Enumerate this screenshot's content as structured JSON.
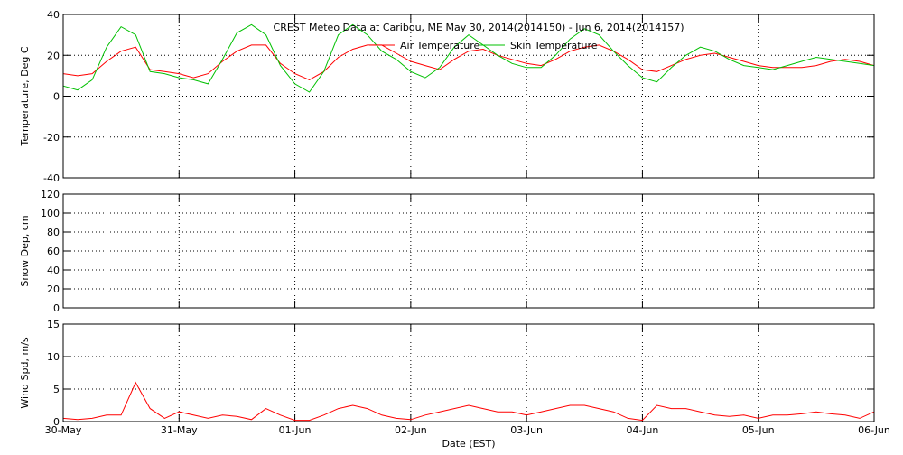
{
  "chart_data": [
    {
      "type": "line",
      "title": "CREST Meteo Data at Caribou, ME   May 30, 2014(2014150) - Jun  6, 2014(2014157)",
      "ylabel": "Temperature, Deg C",
      "legend": "upper center",
      "grid": true,
      "x": [
        0,
        0.125,
        0.25,
        0.375,
        0.5,
        0.625,
        0.75,
        0.875,
        1,
        1.125,
        1.25,
        1.375,
        1.5,
        1.625,
        1.75,
        1.875,
        2,
        2.125,
        2.25,
        2.375,
        2.5,
        2.625,
        2.75,
        2.875,
        3,
        3.125,
        3.25,
        3.375,
        3.5,
        3.625,
        3.75,
        3.875,
        4,
        4.125,
        4.25,
        4.375,
        4.5,
        4.625,
        4.75,
        4.875,
        5,
        5.125,
        5.25,
        5.375,
        5.5,
        5.625,
        5.75,
        5.875,
        6,
        6.125,
        6.25,
        6.375,
        6.5,
        6.625,
        6.75,
        6.875,
        7
      ],
      "xlim": [
        0,
        7
      ],
      "xticks": [
        0,
        1,
        2,
        3,
        4,
        5,
        6,
        7
      ],
      "ylim": [
        -40,
        40
      ],
      "yticks": [
        -40,
        -20,
        0,
        20,
        40
      ],
      "series": [
        {
          "name": "Air Temperature",
          "color": "#ff0000",
          "values": [
            11,
            10,
            11,
            17,
            22,
            24,
            13,
            12,
            11,
            9,
            11,
            17,
            22,
            25,
            25,
            16,
            11,
            8,
            12,
            19,
            23,
            25,
            25,
            21,
            17,
            15,
            13,
            18,
            22,
            23,
            20,
            18,
            16,
            15,
            18,
            22,
            24,
            25,
            22,
            18,
            13,
            12,
            15,
            18,
            20,
            21,
            19,
            17,
            15,
            14,
            14,
            14,
            15,
            17,
            18,
            17,
            15
          ]
        },
        {
          "name": "Skin Temperature",
          "color": "#00c000",
          "values": [
            5,
            3,
            8,
            24,
            34,
            30,
            12,
            11,
            9,
            8,
            6,
            18,
            31,
            35,
            30,
            15,
            6,
            2,
            12,
            30,
            35,
            30,
            22,
            18,
            12,
            9,
            14,
            24,
            30,
            25,
            20,
            16,
            14,
            14,
            20,
            28,
            33,
            30,
            22,
            15,
            9,
            7,
            14,
            20,
            24,
            22,
            18,
            15,
            14,
            13,
            15,
            17,
            19,
            18,
            17,
            16,
            15
          ]
        }
      ]
    },
    {
      "type": "line",
      "ylabel": "Snow Dep, cm",
      "grid": true,
      "x": [
        0,
        0.125,
        0.25,
        0.375,
        0.5,
        0.625,
        0.75,
        0.875,
        1,
        1.125,
        1.25,
        1.375,
        1.5,
        1.625,
        1.75,
        1.875,
        2,
        2.125,
        2.25,
        2.375,
        2.5,
        2.625,
        2.75,
        2.875,
        3,
        3.125,
        3.25,
        3.375,
        3.5,
        3.625,
        3.75,
        3.875,
        4,
        4.125,
        4.25,
        4.375,
        4.5,
        4.625,
        4.75,
        4.875,
        5,
        5.125,
        5.25,
        5.375,
        5.5,
        5.625,
        5.75,
        5.875,
        6,
        6.125,
        6.25,
        6.375,
        6.5,
        6.625,
        6.75,
        6.875,
        7
      ],
      "xlim": [
        0,
        7
      ],
      "xticks": [
        0,
        1,
        2,
        3,
        4,
        5,
        6,
        7
      ],
      "ylim": [
        0,
        120
      ],
      "yticks": [
        0,
        20,
        40,
        60,
        80,
        100,
        120
      ],
      "series": [
        {
          "color": "#000080",
          "values": [
            0,
            0,
            0,
            0,
            0,
            0,
            0,
            0,
            0,
            0,
            0,
            0,
            0,
            0,
            0,
            0,
            0,
            0,
            0,
            0,
            0,
            0,
            0,
            0,
            0,
            0,
            0,
            0,
            0,
            0,
            0,
            0,
            0,
            0,
            0,
            0,
            0,
            0,
            0,
            0,
            0,
            0,
            0,
            0,
            0,
            0,
            0,
            0,
            0,
            0,
            0,
            0,
            0,
            0,
            0,
            0,
            0
          ]
        }
      ]
    },
    {
      "type": "line",
      "ylabel": "Wind Spd, m/s",
      "xlabel": "Date (EST)",
      "grid": true,
      "x": [
        0,
        0.125,
        0.25,
        0.375,
        0.5,
        0.625,
        0.75,
        0.875,
        1,
        1.125,
        1.25,
        1.375,
        1.5,
        1.625,
        1.75,
        1.875,
        2,
        2.125,
        2.25,
        2.375,
        2.5,
        2.625,
        2.75,
        2.875,
        3,
        3.125,
        3.25,
        3.375,
        3.5,
        3.625,
        3.75,
        3.875,
        4,
        4.125,
        4.25,
        4.375,
        4.5,
        4.625,
        4.75,
        4.875,
        5,
        5.125,
        5.25,
        5.375,
        5.5,
        5.625,
        5.75,
        5.875,
        6,
        6.125,
        6.25,
        6.375,
        6.5,
        6.625,
        6.75,
        6.875,
        7
      ],
      "xlim": [
        0,
        7
      ],
      "xticks": [
        {
          "value": 0,
          "label": "30-May"
        },
        {
          "value": 1,
          "label": "31-May"
        },
        {
          "value": 2,
          "label": "01-Jun"
        },
        {
          "value": 3,
          "label": "02-Jun"
        },
        {
          "value": 4,
          "label": "03-Jun"
        },
        {
          "value": 5,
          "label": "04-Jun"
        },
        {
          "value": 6,
          "label": "05-Jun"
        },
        {
          "value": 7,
          "label": "06-Jun"
        }
      ],
      "ylim": [
        0,
        15
      ],
      "yticks": [
        0,
        5,
        10,
        15
      ],
      "series": [
        {
          "color": "#ff0000",
          "values": [
            0.5,
            0.3,
            0.5,
            1,
            1,
            6,
            2,
            0.5,
            1.5,
            1,
            0.5,
            1,
            0.8,
            0.3,
            2,
            1,
            0.2,
            0.2,
            1,
            2,
            2.5,
            2,
            1,
            0.5,
            0.3,
            1,
            1.5,
            2,
            2.5,
            2,
            1.5,
            1.5,
            1,
            1.5,
            2,
            2.5,
            2.5,
            2,
            1.5,
            0.5,
            0.2,
            2.5,
            2,
            2,
            1.5,
            1,
            0.8,
            1,
            0.5,
            1,
            1,
            1.2,
            1.5,
            1.2,
            1,
            0.5,
            1.5
          ]
        }
      ]
    }
  ]
}
